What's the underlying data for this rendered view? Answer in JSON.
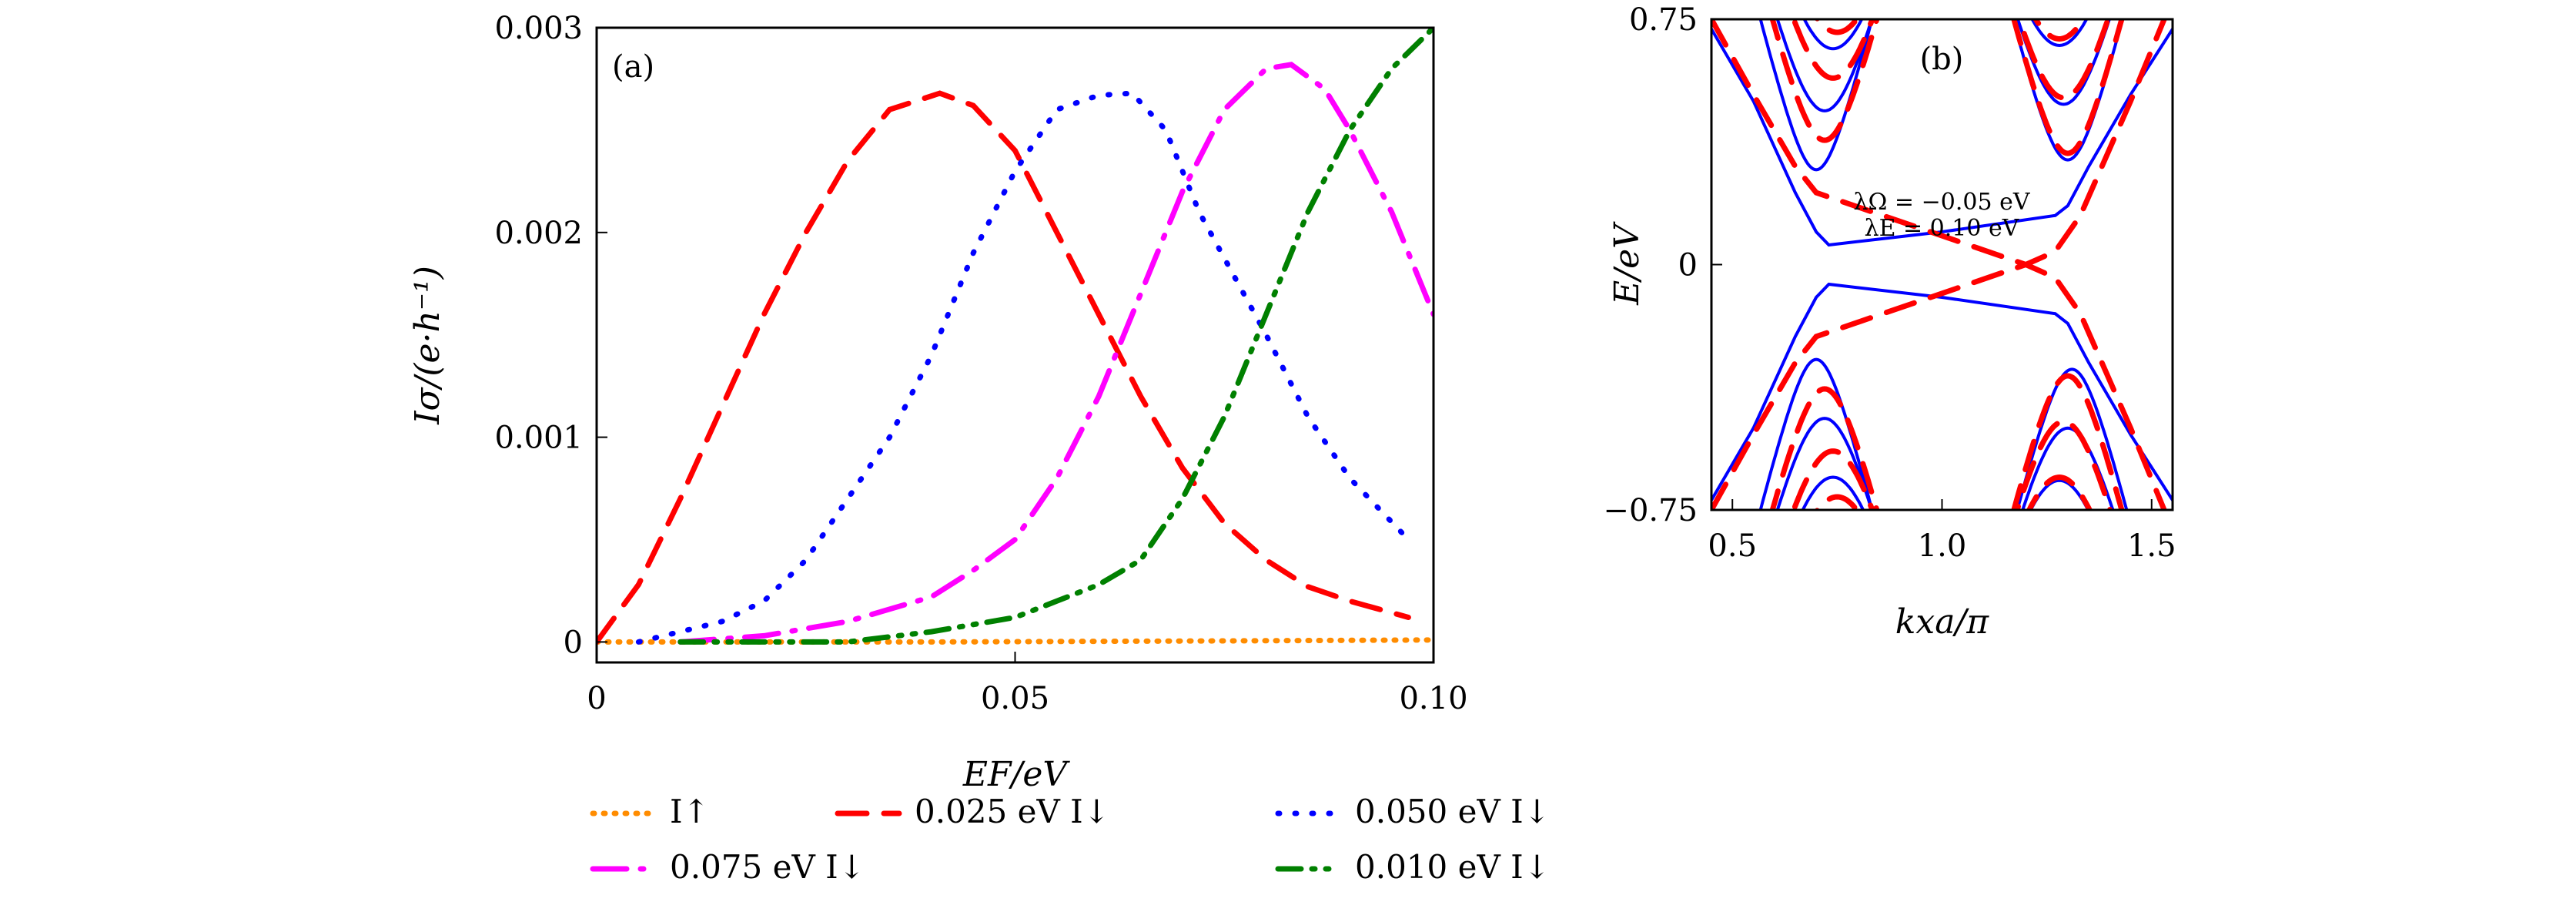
{
  "chart_data": [
    {
      "panel_label": "(a)",
      "type": "line",
      "xlabel": "E_F/eV",
      "xlabel_display": "EF/eV",
      "ylabel": "I_σ/(e·h^-1)",
      "ylabel_display": "Iσ/(e·h⁻¹)",
      "xlim": [
        0,
        0.1
      ],
      "ylim": [
        -0.0001,
        0.003
      ],
      "xticks": [
        {
          "v": 0,
          "label": "0"
        },
        {
          "v": 0.05,
          "label": "0.05"
        },
        {
          "v": 0.1,
          "label": "0.10"
        }
      ],
      "yticks": [
        {
          "v": 0,
          "label": "0"
        },
        {
          "v": 0.001,
          "label": "0.001"
        },
        {
          "v": 0.002,
          "label": "0.002"
        },
        {
          "v": 0.003,
          "label": "0.003"
        }
      ],
      "legend_position": "bottom",
      "series": [
        {
          "name": "I↑",
          "color": "#ff8c00",
          "style": "dotted",
          "x": [
            0,
            0.02,
            0.04,
            0.06,
            0.08,
            0.1
          ],
          "y": [
            0,
            0,
            0,
            3e-06,
            6e-06,
            1e-05
          ]
        },
        {
          "name": "0.025 eV I↓",
          "color": "#ff0000",
          "style": "dash",
          "x": [
            0,
            0.005,
            0.01,
            0.015,
            0.02,
            0.025,
            0.03,
            0.035,
            0.041,
            0.045,
            0.05,
            0.055,
            0.06,
            0.065,
            0.07,
            0.075,
            0.08,
            0.085,
            0.09,
            0.097
          ],
          "y": [
            0,
            0.00028,
            0.0007,
            0.00115,
            0.0016,
            0.002,
            0.00235,
            0.0026,
            0.00268,
            0.00262,
            0.0024,
            0.002,
            0.0016,
            0.0012,
            0.00085,
            0.00058,
            0.0004,
            0.00027,
            0.0002,
            0.00012
          ]
        },
        {
          "name": "0.050 eV I↓",
          "color": "#0000ff",
          "style": "dot",
          "x": [
            0.005,
            0.015,
            0.02,
            0.025,
            0.03,
            0.035,
            0.04,
            0.045,
            0.05,
            0.055,
            0.06,
            0.064,
            0.068,
            0.072,
            0.076,
            0.08,
            0.085,
            0.09,
            0.097
          ],
          "y": [
            0,
            0.0001,
            0.0002,
            0.0004,
            0.0007,
            0.001,
            0.0014,
            0.0019,
            0.0023,
            0.0026,
            0.00267,
            0.00268,
            0.0025,
            0.0021,
            0.0018,
            0.0015,
            0.0011,
            0.0008,
            0.0005
          ]
        },
        {
          "name": "0.075 eV I↓",
          "color": "#ff00ff",
          "style": "dashdot",
          "x": [
            0.01,
            0.02,
            0.03,
            0.04,
            0.045,
            0.05,
            0.055,
            0.06,
            0.065,
            0.07,
            0.075,
            0.08,
            0.083,
            0.087,
            0.09,
            0.095,
            0.1
          ],
          "y": [
            0,
            3e-05,
            0.0001,
            0.00022,
            0.00035,
            0.0005,
            0.0008,
            0.0012,
            0.0017,
            0.0022,
            0.0026,
            0.0028,
            0.00282,
            0.0027,
            0.0025,
            0.0021,
            0.0016
          ]
        },
        {
          "name": "0.010 eV I↓",
          "color": "#008000",
          "style": "dashdotdot",
          "x": [
            0.01,
            0.03,
            0.04,
            0.05,
            0.055,
            0.06,
            0.065,
            0.07,
            0.075,
            0.08,
            0.085,
            0.09,
            0.095,
            0.1
          ],
          "y": [
            0,
            0,
            5e-05,
            0.00012,
            0.0002,
            0.00028,
            0.0004,
            0.0007,
            0.0011,
            0.0016,
            0.0021,
            0.0025,
            0.0028,
            0.003
          ]
        }
      ]
    },
    {
      "panel_label": "(b)",
      "type": "line",
      "xlabel": "k_xa/π",
      "xlabel_display": "kxa/π",
      "ylabel": "E/eV",
      "xlim": [
        0.45,
        1.55
      ],
      "ylim": [
        -0.75,
        0.75
      ],
      "xticks": [
        {
          "v": 0.5,
          "label": "0.5"
        },
        {
          "v": 1.0,
          "label": "1.0"
        },
        {
          "v": 1.5,
          "label": "1.5"
        }
      ],
      "yticks": [
        {
          "v": -0.75,
          "label": "−0.75"
        },
        {
          "v": 0,
          "label": "0"
        },
        {
          "v": 0.75,
          "label": "0.75"
        }
      ],
      "annotations": [
        "λΩ = −0.05 eV",
        "λE = 0.10 eV"
      ],
      "series": [
        {
          "name": "blue-solid-edge-upper",
          "color": "#0000ff",
          "style": "solid",
          "x": [
            0.45,
            0.55,
            0.65,
            0.7,
            0.73,
            1.0,
            1.27,
            1.3,
            1.35,
            1.45,
            1.55
          ],
          "y": [
            0.72,
            0.5,
            0.22,
            0.1,
            0.06,
            0.1,
            0.15,
            0.18,
            0.3,
            0.52,
            0.72
          ]
        },
        {
          "name": "blue-solid-edge-lower",
          "color": "#0000ff",
          "style": "solid",
          "x": [
            0.45,
            0.55,
            0.65,
            0.7,
            0.73,
            1.0,
            1.27,
            1.3,
            1.35,
            1.45,
            1.55
          ],
          "y": [
            -0.72,
            -0.5,
            -0.22,
            -0.1,
            -0.06,
            -0.1,
            -0.15,
            -0.18,
            -0.3,
            -0.52,
            -0.72
          ]
        },
        {
          "name": "red-dashed-edge-1",
          "color": "#ff0000",
          "style": "dash",
          "x": [
            0.45,
            0.55,
            0.65,
            0.7,
            0.95,
            1.2,
            1.27,
            1.33,
            1.45,
            1.53
          ],
          "y": [
            0.75,
            0.52,
            0.3,
            0.22,
            0.11,
            0.0,
            -0.04,
            -0.15,
            -0.5,
            -0.75
          ]
        },
        {
          "name": "red-dashed-edge-2",
          "color": "#ff0000",
          "style": "dash",
          "x": [
            0.45,
            0.55,
            0.65,
            0.7,
            0.95,
            1.2,
            1.27,
            1.33,
            1.45,
            1.53
          ],
          "y": [
            -0.75,
            -0.52,
            -0.3,
            -0.22,
            -0.11,
            0.0,
            0.04,
            0.15,
            0.5,
            0.75
          ]
        }
      ],
      "hyperbolic_bands": [
        {
          "color": "#0000ff",
          "style": "solid",
          "k0": 0.7,
          "E0": 0.29
        },
        {
          "color": "#0000ff",
          "style": "solid",
          "k0": 0.72,
          "E0": 0.47
        },
        {
          "color": "#0000ff",
          "style": "solid",
          "k0": 0.74,
          "E0": 0.66
        },
        {
          "color": "#0000ff",
          "style": "solid",
          "k0": 1.3,
          "E0": 0.32
        },
        {
          "color": "#0000ff",
          "style": "solid",
          "k0": 1.29,
          "E0": 0.49
        },
        {
          "color": "#0000ff",
          "style": "solid",
          "k0": 1.28,
          "E0": 0.67
        },
        {
          "color": "#0000ff",
          "style": "solid",
          "k0": 0.7,
          "E0": -0.29
        },
        {
          "color": "#0000ff",
          "style": "solid",
          "k0": 0.72,
          "E0": -0.47
        },
        {
          "color": "#0000ff",
          "style": "solid",
          "k0": 0.74,
          "E0": -0.65
        },
        {
          "color": "#0000ff",
          "style": "solid",
          "k0": 1.31,
          "E0": -0.32
        },
        {
          "color": "#0000ff",
          "style": "solid",
          "k0": 1.3,
          "E0": -0.5
        },
        {
          "color": "#0000ff",
          "style": "solid",
          "k0": 1.28,
          "E0": -0.66
        },
        {
          "color": "#ff0000",
          "style": "dash",
          "k0": 0.72,
          "E0": 0.38
        },
        {
          "color": "#ff0000",
          "style": "dash",
          "k0": 0.74,
          "E0": 0.57
        },
        {
          "color": "#ff0000",
          "style": "dash",
          "k0": 0.75,
          "E0": 0.71
        },
        {
          "color": "#ff0000",
          "style": "dash",
          "k0": 1.3,
          "E0": 0.34
        },
        {
          "color": "#ff0000",
          "style": "dash",
          "k0": 1.29,
          "E0": 0.51
        },
        {
          "color": "#ff0000",
          "style": "dash",
          "k0": 1.28,
          "E0": 0.69
        },
        {
          "color": "#ff0000",
          "style": "dash",
          "k0": 0.72,
          "E0": -0.38
        },
        {
          "color": "#ff0000",
          "style": "dash",
          "k0": 0.74,
          "E0": -0.57
        },
        {
          "color": "#ff0000",
          "style": "dash",
          "k0": 0.75,
          "E0": -0.71
        },
        {
          "color": "#ff0000",
          "style": "dash",
          "k0": 1.3,
          "E0": -0.34
        },
        {
          "color": "#ff0000",
          "style": "dash",
          "k0": 1.29,
          "E0": -0.48
        },
        {
          "color": "#ff0000",
          "style": "dash",
          "k0": 1.28,
          "E0": -0.65
        }
      ]
    }
  ]
}
